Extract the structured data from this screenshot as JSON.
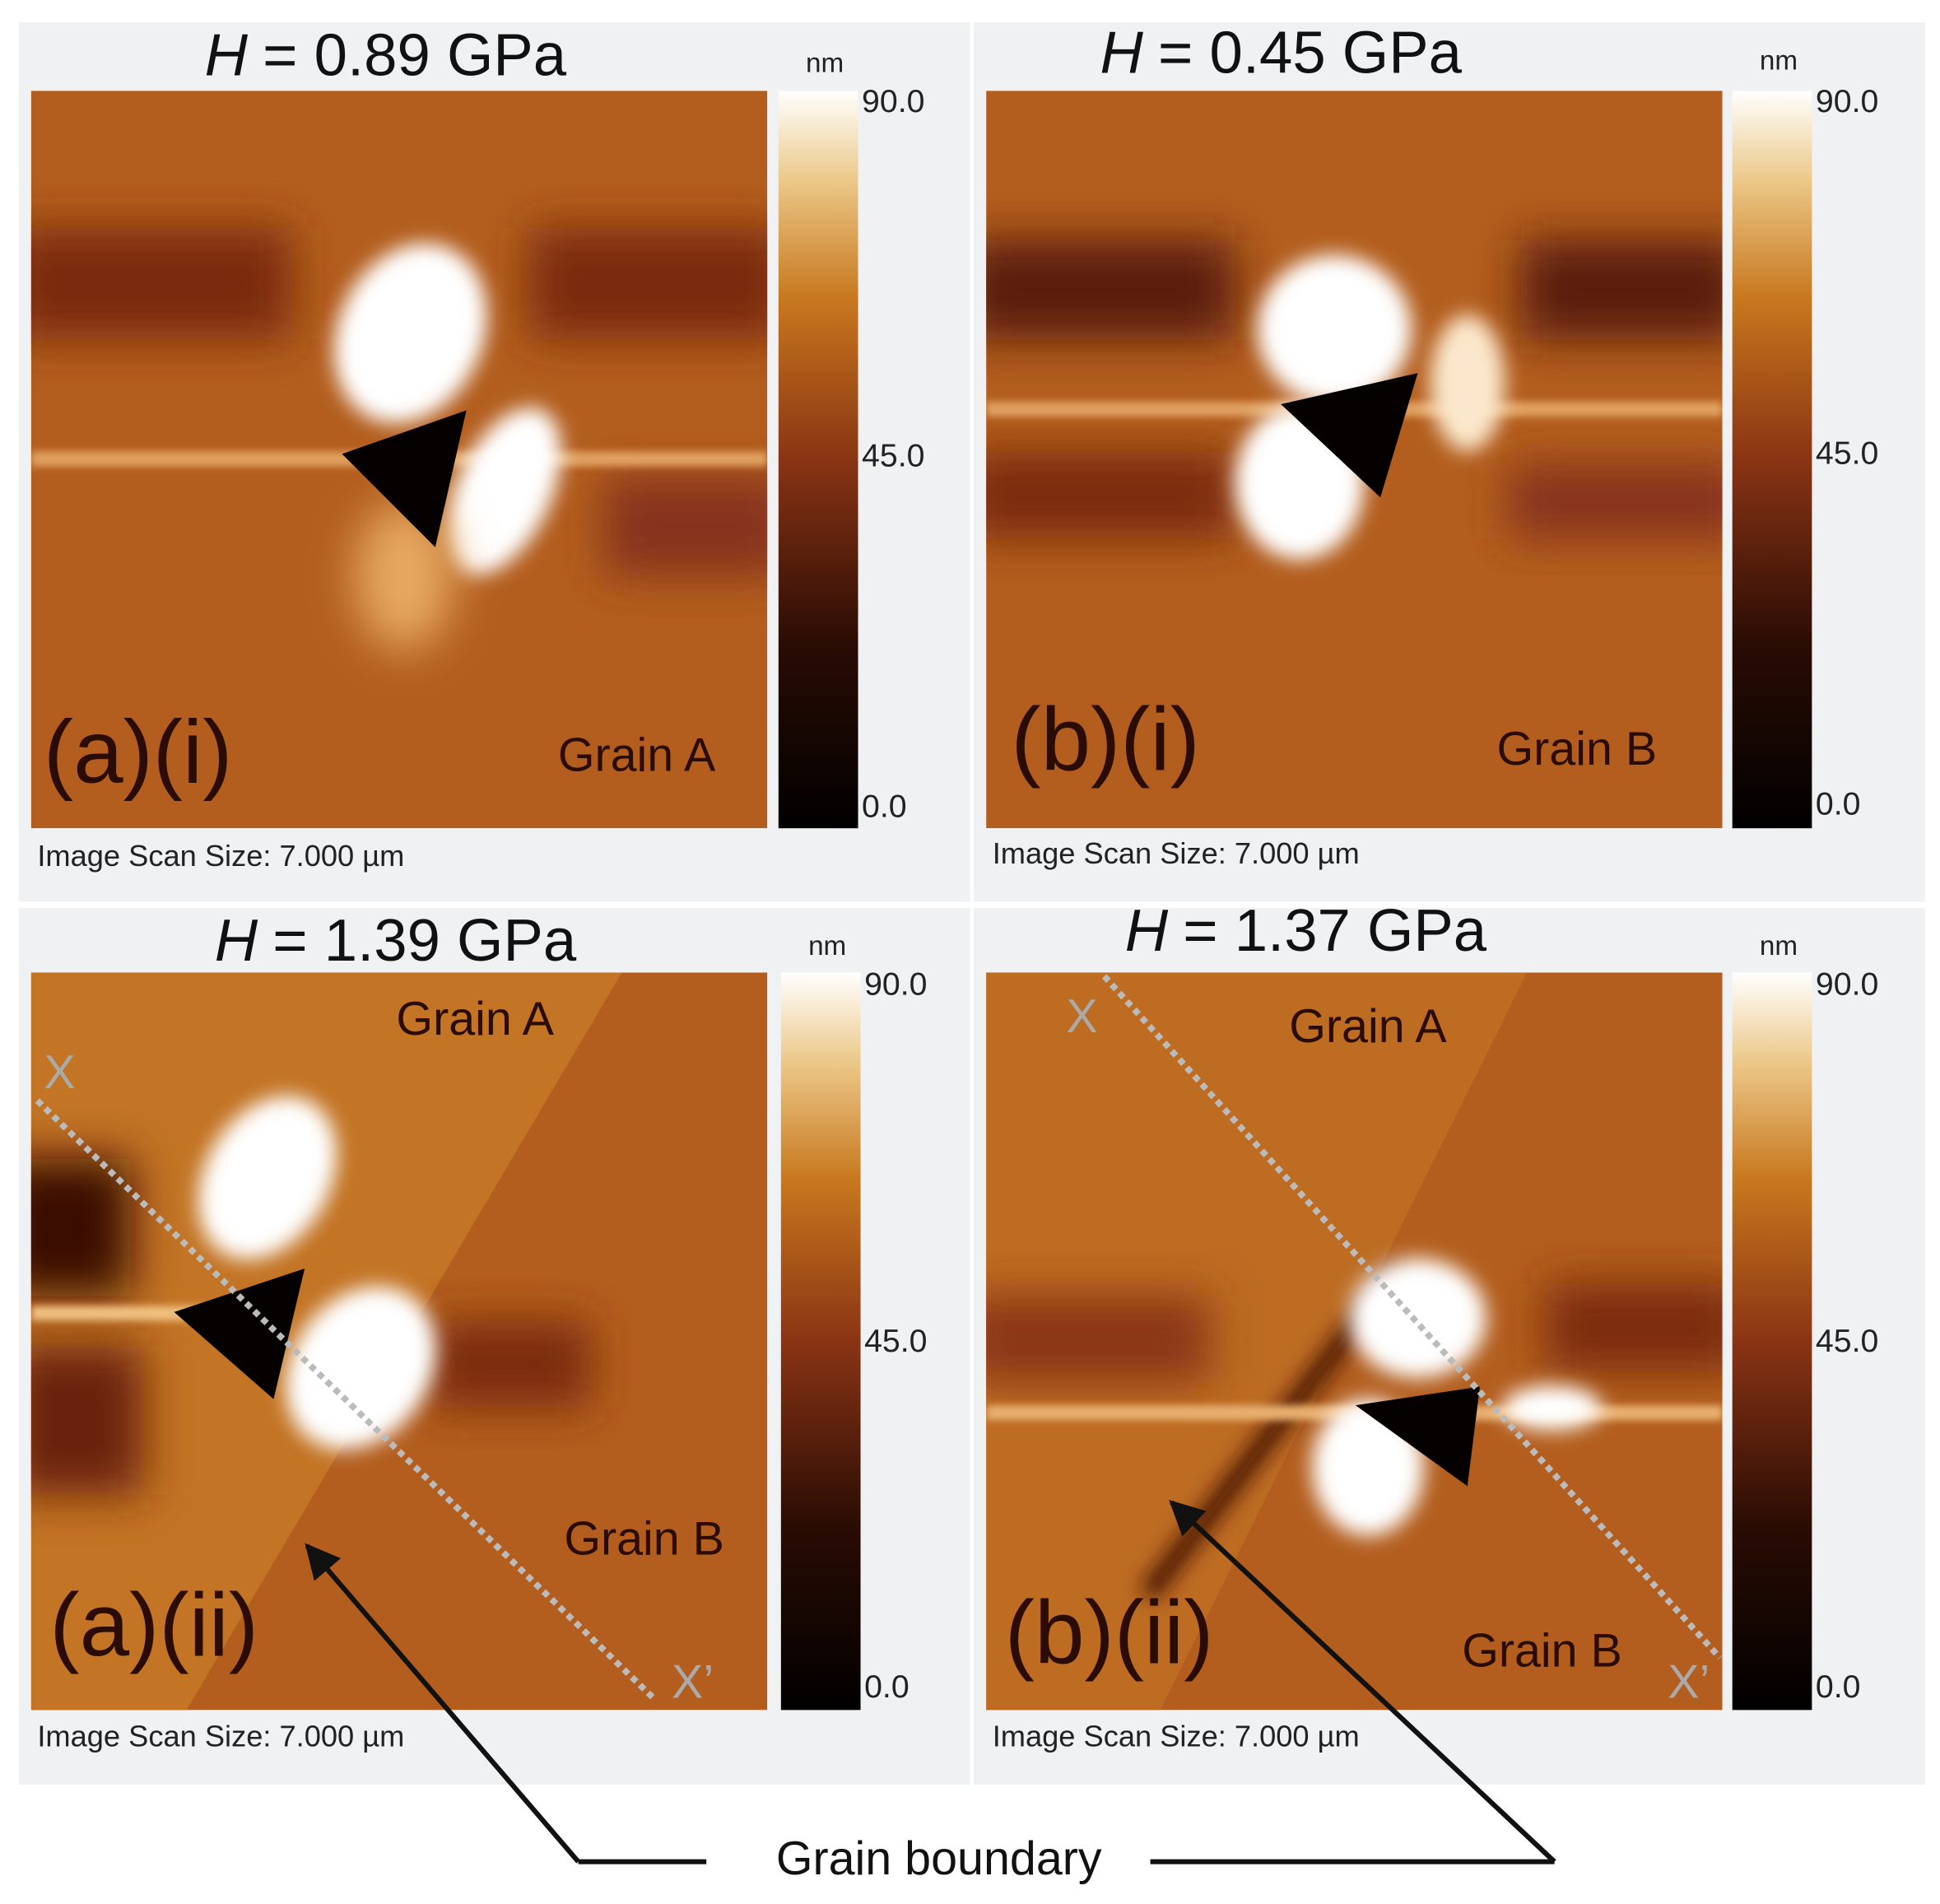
{
  "panels": [
    {
      "title": {
        "symbol": "H",
        "text": "= 0.89 GPa"
      },
      "label": "(a)(i)",
      "grains": [
        "Grain A"
      ],
      "colorbar": {
        "unit": "nm",
        "ticks": [
          "90.0",
          "45.0",
          "0.0"
        ]
      },
      "scan_size": "Image Scan Size: 7.000 µm"
    },
    {
      "title": {
        "symbol": "H",
        "text": "= 0.45  GPa"
      },
      "label": "(b)(i)",
      "grains": [
        "Grain B"
      ],
      "colorbar": {
        "unit": "nm",
        "ticks": [
          "90.0",
          "45.0",
          "0.0"
        ]
      },
      "scan_size": "Image Scan Size: 7.000 µm"
    },
    {
      "title": {
        "symbol": "H",
        "text": "= 1.39 GPa"
      },
      "label": "(a)(ii)",
      "grains": [
        "Grain A",
        "Grain B"
      ],
      "markers": [
        "X",
        "X’"
      ],
      "colorbar": {
        "unit": "nm",
        "ticks": [
          "90.0",
          "45.0",
          "0.0"
        ]
      },
      "scan_size": "Image Scan Size: 7.000 µm"
    },
    {
      "title": {
        "symbol": "H",
        "text": "= 1.37 GPa"
      },
      "label": "(b)(ii)",
      "grains": [
        "Grain A",
        "Grain B"
      ],
      "markers": [
        "X",
        "X’"
      ],
      "colorbar": {
        "unit": "nm",
        "ticks": [
          "90.0",
          "45.0",
          "0.0"
        ]
      },
      "scan_size": "Image Scan Size: 7.000 µm"
    }
  ],
  "annotation": "Grain boundary"
}
